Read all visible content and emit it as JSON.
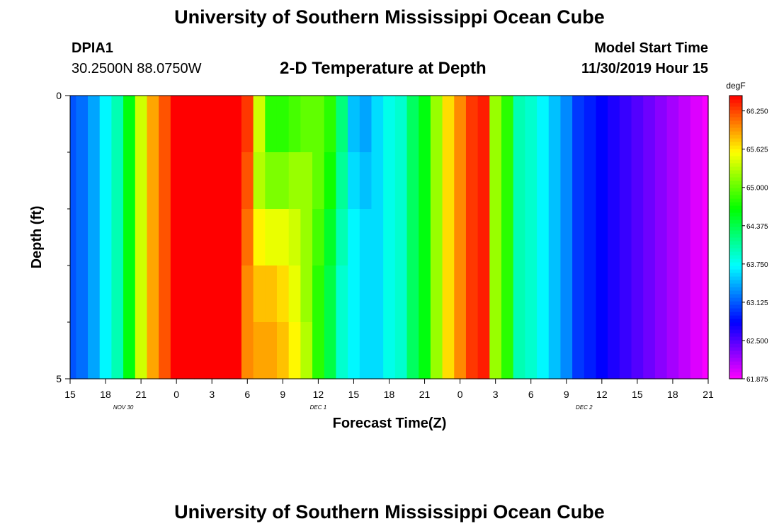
{
  "page": {
    "title_top": "University of Southern Mississippi Ocean Cube",
    "title_bottom": "University of Southern Mississippi Ocean Cube",
    "station_id": "DPIA1",
    "station_coords": "30.2500N 88.0750W",
    "model_start_label": "Model Start Time",
    "model_start_value": "11/30/2019 Hour 15"
  },
  "chart_data": {
    "type": "heatmap",
    "title": "2-D Temperature at Depth",
    "xlabel": "Forecast Time(Z)",
    "ylabel": "Depth (ft)",
    "x_ticks": [
      "15",
      "18",
      "21",
      "0",
      "3",
      "6",
      "9",
      "12",
      "15",
      "18",
      "21",
      "0",
      "3",
      "6",
      "9",
      "12",
      "15",
      "18",
      "21"
    ],
    "x_tick_hours_from_start": [
      0,
      3,
      6,
      9,
      12,
      15,
      18,
      21,
      24,
      27,
      30,
      33,
      36,
      39,
      42,
      45,
      48,
      51,
      54
    ],
    "x_range_hours_from_start": [
      0,
      54
    ],
    "date_labels": [
      {
        "text": "NOV 30",
        "hour_from_start": 4.5
      },
      {
        "text": "DEC 1",
        "hour_from_start": 21
      },
      {
        "text": "DEC 2",
        "hour_from_start": 43.5
      }
    ],
    "y_range": [
      0,
      5
    ],
    "y_tick_labels": [
      "0",
      "5"
    ],
    "y_minor_ticks": [
      1,
      2,
      3,
      4
    ],
    "colorbar": {
      "unit": "degF",
      "min": 61.875,
      "max": 66.5,
      "tick_labels": [
        "66.250",
        "65.625",
        "65.000",
        "64.375",
        "63.750",
        "63.125",
        "62.500",
        "61.875"
      ],
      "tick_values": [
        66.25,
        65.625,
        65.0,
        64.375,
        63.75,
        63.125,
        62.5,
        61.875
      ]
    },
    "depth_levels": [
      0,
      1,
      2,
      3,
      4,
      5
    ],
    "hours": [
      0,
      1,
      2,
      3,
      4,
      5,
      6,
      7,
      8,
      9,
      10,
      11,
      12,
      13,
      14,
      15,
      16,
      17,
      18,
      19,
      20,
      21,
      22,
      23,
      24,
      25,
      26,
      27,
      28,
      29,
      30,
      31,
      32,
      33,
      34,
      35,
      36,
      37,
      38,
      39,
      40,
      41,
      42,
      43,
      44,
      45,
      46,
      47,
      48,
      49,
      50,
      51,
      52,
      53,
      54
    ],
    "temperature": [
      [
        63.1,
        63.2,
        63.4,
        63.7,
        64.0,
        64.6,
        65.4,
        65.9,
        66.2,
        66.5,
        66.5,
        66.5,
        66.5,
        66.5,
        66.5,
        66.3,
        65.4,
        64.8,
        64.8,
        64.9,
        65.0,
        65.0,
        64.8,
        64.2,
        63.5,
        63.4,
        63.6,
        63.8,
        63.9,
        64.3,
        64.6,
        65.2,
        65.7,
        66.0,
        66.3,
        66.4,
        65.2,
        64.8,
        64.0,
        63.9,
        63.7,
        63.5,
        63.3,
        63.0,
        62.9,
        62.8,
        62.7,
        62.6,
        62.5,
        62.4,
        62.3,
        62.2,
        62.1,
        62.0,
        61.9
      ],
      [
        63.1,
        63.2,
        63.4,
        63.7,
        64.0,
        64.6,
        65.4,
        65.9,
        66.2,
        66.5,
        66.5,
        66.5,
        66.5,
        66.5,
        66.5,
        66.2,
        65.3,
        65.1,
        65.1,
        65.2,
        65.2,
        65.0,
        64.7,
        64.1,
        63.6,
        63.5,
        63.6,
        63.8,
        63.9,
        64.3,
        64.6,
        65.2,
        65.7,
        66.0,
        66.3,
        66.4,
        65.2,
        64.8,
        64.0,
        63.9,
        63.7,
        63.5,
        63.3,
        63.0,
        62.9,
        62.8,
        62.7,
        62.6,
        62.5,
        62.4,
        62.3,
        62.2,
        62.1,
        62.0,
        61.9
      ],
      [
        63.1,
        63.2,
        63.4,
        63.7,
        64.0,
        64.6,
        65.4,
        65.9,
        66.2,
        66.5,
        66.5,
        66.5,
        66.5,
        66.5,
        66.5,
        66.1,
        65.6,
        65.5,
        65.5,
        65.4,
        65.2,
        64.9,
        64.5,
        64.0,
        63.7,
        63.6,
        63.6,
        63.8,
        63.9,
        64.3,
        64.6,
        65.2,
        65.7,
        66.0,
        66.3,
        66.4,
        65.2,
        64.8,
        64.0,
        63.9,
        63.7,
        63.5,
        63.3,
        63.0,
        62.9,
        62.8,
        62.7,
        62.6,
        62.5,
        62.4,
        62.3,
        62.2,
        62.1,
        62.0,
        61.9
      ],
      [
        63.1,
        63.2,
        63.4,
        63.7,
        64.0,
        64.6,
        65.4,
        65.9,
        66.2,
        66.5,
        66.5,
        66.5,
        66.5,
        66.5,
        66.5,
        66.0,
        65.8,
        65.8,
        65.7,
        65.5,
        65.2,
        64.8,
        64.4,
        63.9,
        63.7,
        63.6,
        63.6,
        63.8,
        63.9,
        64.3,
        64.6,
        65.2,
        65.7,
        66.0,
        66.3,
        66.4,
        65.2,
        64.8,
        64.0,
        63.9,
        63.7,
        63.5,
        63.3,
        63.0,
        62.9,
        62.8,
        62.7,
        62.6,
        62.5,
        62.4,
        62.3,
        62.2,
        62.1,
        62.0,
        61.9
      ],
      [
        63.1,
        63.2,
        63.4,
        63.7,
        64.0,
        64.6,
        65.4,
        65.9,
        66.2,
        66.5,
        66.5,
        66.5,
        66.5,
        66.5,
        66.5,
        66.0,
        65.9,
        65.9,
        65.8,
        65.6,
        65.3,
        64.8,
        64.4,
        63.9,
        63.7,
        63.6,
        63.6,
        63.8,
        63.9,
        64.3,
        64.6,
        65.2,
        65.7,
        66.0,
        66.3,
        66.4,
        65.2,
        64.8,
        64.0,
        63.9,
        63.7,
        63.5,
        63.3,
        63.0,
        62.9,
        62.8,
        62.7,
        62.6,
        62.5,
        62.4,
        62.3,
        62.2,
        62.1,
        62.0,
        61.9
      ]
    ]
  }
}
